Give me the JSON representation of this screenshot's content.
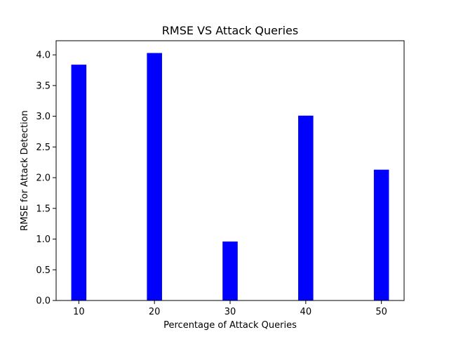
{
  "chart_data": {
    "type": "bar",
    "title": "RMSE VS Attack Queries",
    "xlabel": "Percentage of Attack Queries",
    "ylabel": "RMSE for Attack Detection",
    "x": [
      10,
      20,
      30,
      40,
      50
    ],
    "values": [
      3.84,
      4.03,
      0.96,
      3.01,
      2.13
    ],
    "bar_color": "#0000ff",
    "xlim": [
      7,
      53
    ],
    "ylim": [
      0,
      4.23
    ],
    "xticks": [
      10,
      20,
      30,
      40,
      50
    ],
    "xtick_labels": [
      "10",
      "20",
      "30",
      "40",
      "50"
    ],
    "yticks": [
      0,
      0.5,
      1,
      1.5,
      2,
      2.5,
      3,
      3.5,
      4
    ],
    "ytick_labels": [
      "0.0",
      "0.5",
      "1.0",
      "1.5",
      "2.0",
      "2.5",
      "3.0",
      "3.5",
      "4.0"
    ],
    "bar_width": 2,
    "grid": false,
    "legend": "none"
  }
}
